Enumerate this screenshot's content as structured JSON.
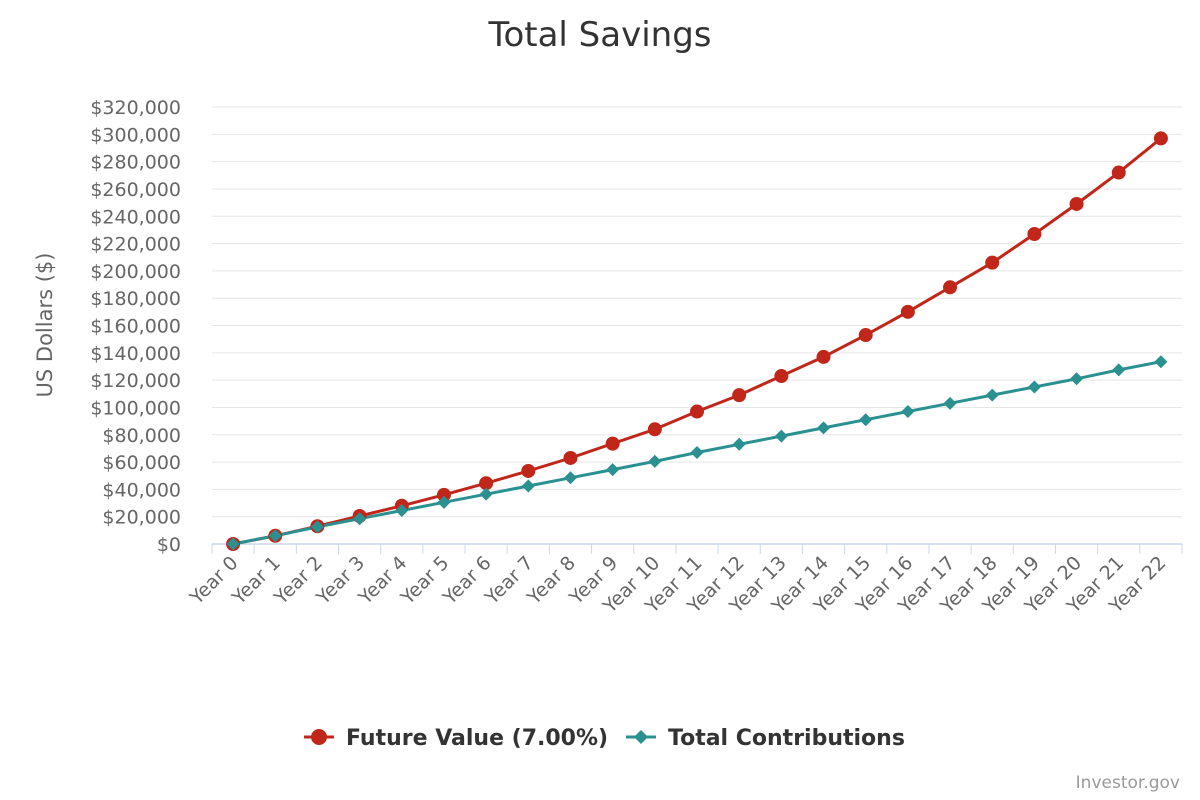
{
  "chart_data": {
    "type": "line",
    "title": "Total Savings",
    "ylabel": "US Dollars ($)",
    "xlabel": "",
    "categories": [
      "Year 0",
      "Year 1",
      "Year 2",
      "Year 3",
      "Year 4",
      "Year 5",
      "Year 6",
      "Year 7",
      "Year 8",
      "Year 9",
      "Year 10",
      "Year 11",
      "Year 12",
      "Year 13",
      "Year 14",
      "Year 15",
      "Year 16",
      "Year 17",
      "Year 18",
      "Year 19",
      "Year 20",
      "Year 21",
      "Year 22"
    ],
    "yticks": [
      "$0",
      "$20,000",
      "$40,000",
      "$60,000",
      "$80,000",
      "$100,000",
      "$120,000",
      "$140,000",
      "$160,000",
      "$180,000",
      "$200,000",
      "$220,000",
      "$240,000",
      "$260,000",
      "$280,000",
      "$300,000",
      "$320,000"
    ],
    "ylim": [
      0,
      320000
    ],
    "grid": true,
    "legend_position": "bottom-center",
    "series": [
      {
        "name": "Future Value (7.00%)",
        "color": "#c0271a",
        "marker": "circle",
        "values": [
          0,
          6000,
          13000,
          20500,
          28000,
          36000,
          44500,
          53500,
          63000,
          73500,
          84000,
          97000,
          109000,
          123000,
          137000,
          153000,
          170000,
          188000,
          206000,
          227000,
          249000,
          272000,
          297000
        ]
      },
      {
        "name": "Total Contributions",
        "color": "#2a9090",
        "marker": "diamond",
        "values": [
          0,
          6000,
          12500,
          18500,
          24500,
          30500,
          36500,
          42500,
          48500,
          54500,
          60500,
          67000,
          73000,
          79000,
          85000,
          91000,
          97000,
          103000,
          109000,
          115000,
          121000,
          127500,
          133500
        ]
      }
    ]
  },
  "credit": "Investor.gov"
}
